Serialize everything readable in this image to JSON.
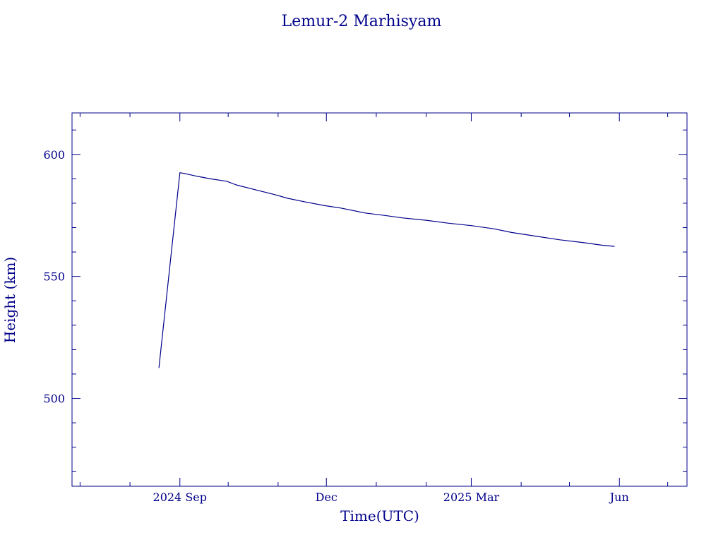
{
  "chart_data": {
    "type": "line",
    "title": "Lemur-2 Marhisyam",
    "xlabel": "Time(UTC)",
    "ylabel": "Height (km)",
    "x_tick_labels": [
      {
        "date": "2024-09-01",
        "label": "2024 Sep"
      },
      {
        "date": "2024-12-01",
        "label": "Dec"
      },
      {
        "date": "2025-03-01",
        "label": "2025 Mar"
      },
      {
        "date": "2025-06-01",
        "label": "Jun"
      }
    ],
    "y_tick_labels": [
      {
        "value": 500,
        "label": "500"
      },
      {
        "value": 550,
        "label": "550"
      },
      {
        "value": 600,
        "label": "600"
      }
    ],
    "xlim": [
      "2024-06-26",
      "2025-07-13"
    ],
    "ylim": [
      464,
      617
    ],
    "x_minor_ticks": [
      "2024-07-01",
      "2024-08-01",
      "2024-09-01",
      "2024-10-01",
      "2024-11-01",
      "2024-12-01",
      "2025-01-01",
      "2025-02-01",
      "2025-03-01",
      "2025-04-01",
      "2025-05-01",
      "2025-06-01",
      "2025-07-01"
    ],
    "y_minor_step": 10,
    "grid": false,
    "color": "#00008b",
    "series": [
      {
        "x": [
          "2024-08-19",
          "2024-09-01",
          "2024-09-05",
          "2024-09-12",
          "2024-09-20",
          "2024-09-30",
          "2024-10-06",
          "2024-10-18",
          "2024-10-30",
          "2024-11-07",
          "2024-11-18",
          "2024-11-30",
          "2024-12-10",
          "2024-12-25",
          "2025-01-06",
          "2025-01-17",
          "2025-02-01",
          "2025-02-15",
          "2025-03-01",
          "2025-03-15",
          "2025-03-26",
          "2025-04-10",
          "2025-04-25",
          "2025-05-10",
          "2025-05-21",
          "2025-05-29"
        ],
        "y": [
          512.5,
          592.5,
          592.0,
          591.0,
          590.0,
          589.0,
          587.5,
          585.5,
          583.5,
          582.0,
          580.5,
          579.0,
          578.0,
          576.0,
          575.0,
          574.0,
          573.0,
          571.8,
          570.8,
          569.5,
          568.0,
          566.5,
          565.0,
          563.8,
          562.8,
          562.3
        ]
      }
    ]
  }
}
